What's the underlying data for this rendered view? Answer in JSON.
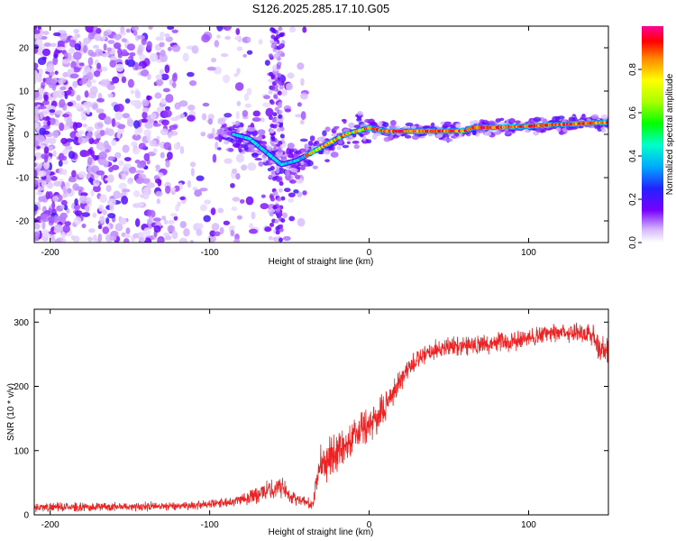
{
  "chart_data": [
    {
      "type": "heatmap",
      "title": "S126.2025.285.17.10.G05",
      "xlabel": "Height of straight line (km)",
      "ylabel": "Frequency (Hz)",
      "xlim": [
        -210,
        150
      ],
      "ylim": [
        -25,
        25
      ],
      "xticks": [
        -200,
        -100,
        0,
        100
      ],
      "yticks": [
        -20,
        -10,
        0,
        10,
        20
      ],
      "colorbar": {
        "label": "Normalized spectral amplitude",
        "range": [
          0,
          1
        ],
        "ticks": [
          0.0,
          0.2,
          0.4,
          0.6,
          0.8
        ]
      },
      "ridge": {
        "description": "dominant frequency track",
        "x": [
          -85,
          -75,
          -65,
          -55,
          -45,
          -35,
          -25,
          -15,
          -5,
          0,
          10,
          20,
          40,
          60,
          65,
          80,
          100,
          120,
          140,
          150
        ],
        "y": [
          0,
          -1,
          -4,
          -7,
          -6,
          -4,
          -2,
          0,
          1,
          1.5,
          0.7,
          0.7,
          0.7,
          0.8,
          1.6,
          1.6,
          1.9,
          2.3,
          2.6,
          2.8
        ]
      }
    },
    {
      "type": "line",
      "xlabel": "Height of straight line (km)",
      "ylabel": "SNR (10 * v/v)",
      "xlim": [
        -210,
        150
      ],
      "ylim": [
        0,
        320
      ],
      "xticks": [
        -200,
        -100,
        0,
        100
      ],
      "yticks": [
        0,
        100,
        200,
        300
      ],
      "series": [
        {
          "name": "SNR",
          "color": "#ee2222",
          "x": [
            -210,
            -180,
            -150,
            -120,
            -100,
            -90,
            -80,
            -70,
            -60,
            -55,
            -50,
            -45,
            -40,
            -35,
            -33,
            -32,
            -30,
            -25,
            -20,
            -15,
            -10,
            -5,
            0,
            5,
            10,
            15,
            20,
            25,
            30,
            40,
            50,
            60,
            70,
            80,
            90,
            100,
            110,
            120,
            130,
            140,
            145,
            150
          ],
          "values": [
            12,
            12,
            13,
            14,
            16,
            20,
            25,
            32,
            40,
            45,
            30,
            25,
            20,
            15,
            50,
            70,
            80,
            90,
            100,
            110,
            120,
            130,
            140,
            150,
            170,
            190,
            210,
            230,
            240,
            255,
            262,
            265,
            265,
            268,
            270,
            275,
            280,
            285,
            285,
            280,
            260,
            250
          ],
          "noise": [
            6,
            6,
            6,
            6,
            6,
            7,
            9,
            12,
            14,
            15,
            10,
            8,
            8,
            6,
            20,
            25,
            28,
            28,
            28,
            28,
            26,
            24,
            24,
            22,
            20,
            20,
            18,
            16,
            14,
            13,
            13,
            13,
            13,
            13,
            13,
            13,
            13,
            13,
            14,
            18,
            20,
            25
          ]
        }
      ]
    }
  ]
}
